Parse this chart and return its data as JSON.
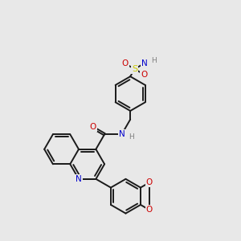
{
  "bg_color": "#e8e8e8",
  "atom_colors": {
    "C": "#000000",
    "N": "#0000cc",
    "O": "#cc0000",
    "S": "#cccc00",
    "H": "#808080"
  },
  "bond_color": "#1a1a1a",
  "bond_width": 1.4,
  "figsize": [
    3.0,
    3.0
  ],
  "dpi": 100
}
